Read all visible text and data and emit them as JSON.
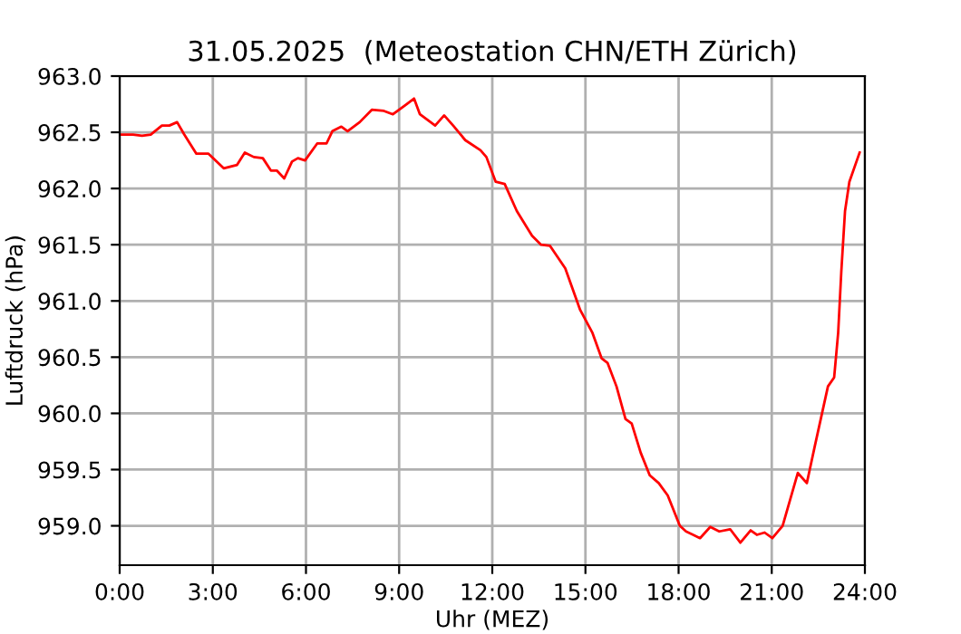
{
  "chart_data": {
    "type": "line",
    "title": "31.05.2025  (Meteostation CHN/ETH Zürich)",
    "xlabel": "Uhr (MEZ)",
    "ylabel": "Luftdruck (hPa)",
    "x": [
      0.04,
      0.43,
      0.72,
      1.0,
      1.36,
      1.6,
      1.85,
      2.08,
      2.47,
      2.86,
      3.35,
      3.78,
      4.03,
      4.32,
      4.61,
      4.87,
      5.06,
      5.3,
      5.55,
      5.74,
      5.97,
      6.36,
      6.66,
      6.85,
      7.14,
      7.34,
      7.73,
      8.12,
      8.51,
      8.8,
      9.19,
      9.48,
      9.67,
      10.16,
      10.45,
      10.74,
      11.13,
      11.62,
      11.81,
      12.11,
      12.4,
      12.79,
      13.28,
      13.57,
      13.86,
      14.35,
      14.83,
      15.22,
      15.52,
      15.71,
      16.0,
      16.29,
      16.49,
      16.78,
      17.07,
      17.36,
      17.65,
      18.04,
      18.24,
      18.69,
      19.02,
      19.31,
      19.66,
      19.99,
      20.32,
      20.52,
      20.77,
      21.02,
      21.35,
      21.84,
      22.13,
      22.38,
      22.81,
      23.01,
      23.14,
      23.24,
      23.36,
      23.5,
      23.83
    ],
    "series": [
      {
        "color": "#ff0000",
        "values": [
          962.48,
          962.48,
          962.47,
          962.48,
          962.56,
          962.56,
          962.59,
          962.48,
          962.31,
          962.31,
          962.18,
          962.21,
          962.32,
          962.28,
          962.27,
          962.16,
          962.16,
          962.09,
          962.24,
          962.27,
          962.25,
          962.4,
          962.4,
          962.51,
          962.55,
          962.51,
          962.59,
          962.7,
          962.69,
          962.66,
          962.74,
          962.8,
          962.66,
          962.56,
          962.65,
          962.56,
          962.43,
          962.34,
          962.28,
          962.06,
          962.04,
          961.8,
          961.58,
          961.5,
          961.49,
          961.29,
          960.92,
          960.72,
          960.49,
          960.45,
          960.24,
          959.95,
          959.91,
          959.65,
          959.45,
          959.38,
          959.27,
          959.0,
          958.95,
          958.89,
          958.99,
          958.95,
          958.97,
          958.85,
          958.96,
          958.92,
          958.94,
          958.89,
          959.0,
          959.47,
          959.38,
          959.7,
          960.24,
          960.32,
          960.72,
          961.26,
          961.8,
          962.06,
          962.32
        ]
      }
    ],
    "xlim": [
      0,
      24
    ],
    "xticks": [
      {
        "value": 0,
        "label": "0:00"
      },
      {
        "value": 3,
        "label": "3:00"
      },
      {
        "value": 6,
        "label": "6:00"
      },
      {
        "value": 9,
        "label": "9:00"
      },
      {
        "value": 12,
        "label": "12:00"
      },
      {
        "value": 15,
        "label": "15:00"
      },
      {
        "value": 18,
        "label": "18:00"
      },
      {
        "value": 21,
        "label": "21:00"
      },
      {
        "value": 24,
        "label": "24:00"
      }
    ],
    "ylim": [
      958.65,
      963.0
    ],
    "yticks": [
      {
        "value": 959,
        "label": "959.0"
      },
      {
        "value": 959.5,
        "label": "959.5"
      },
      {
        "value": 960,
        "label": "960.0"
      },
      {
        "value": 960.5,
        "label": "960.5"
      },
      {
        "value": 961,
        "label": "961.0"
      },
      {
        "value": 961.5,
        "label": "961.5"
      },
      {
        "value": 962,
        "label": "962.0"
      },
      {
        "value": 962.5,
        "label": "962.5"
      },
      {
        "value": 963,
        "label": "963.0"
      }
    ],
    "grid": true,
    "marker": "none",
    "line_style": "solid"
  }
}
